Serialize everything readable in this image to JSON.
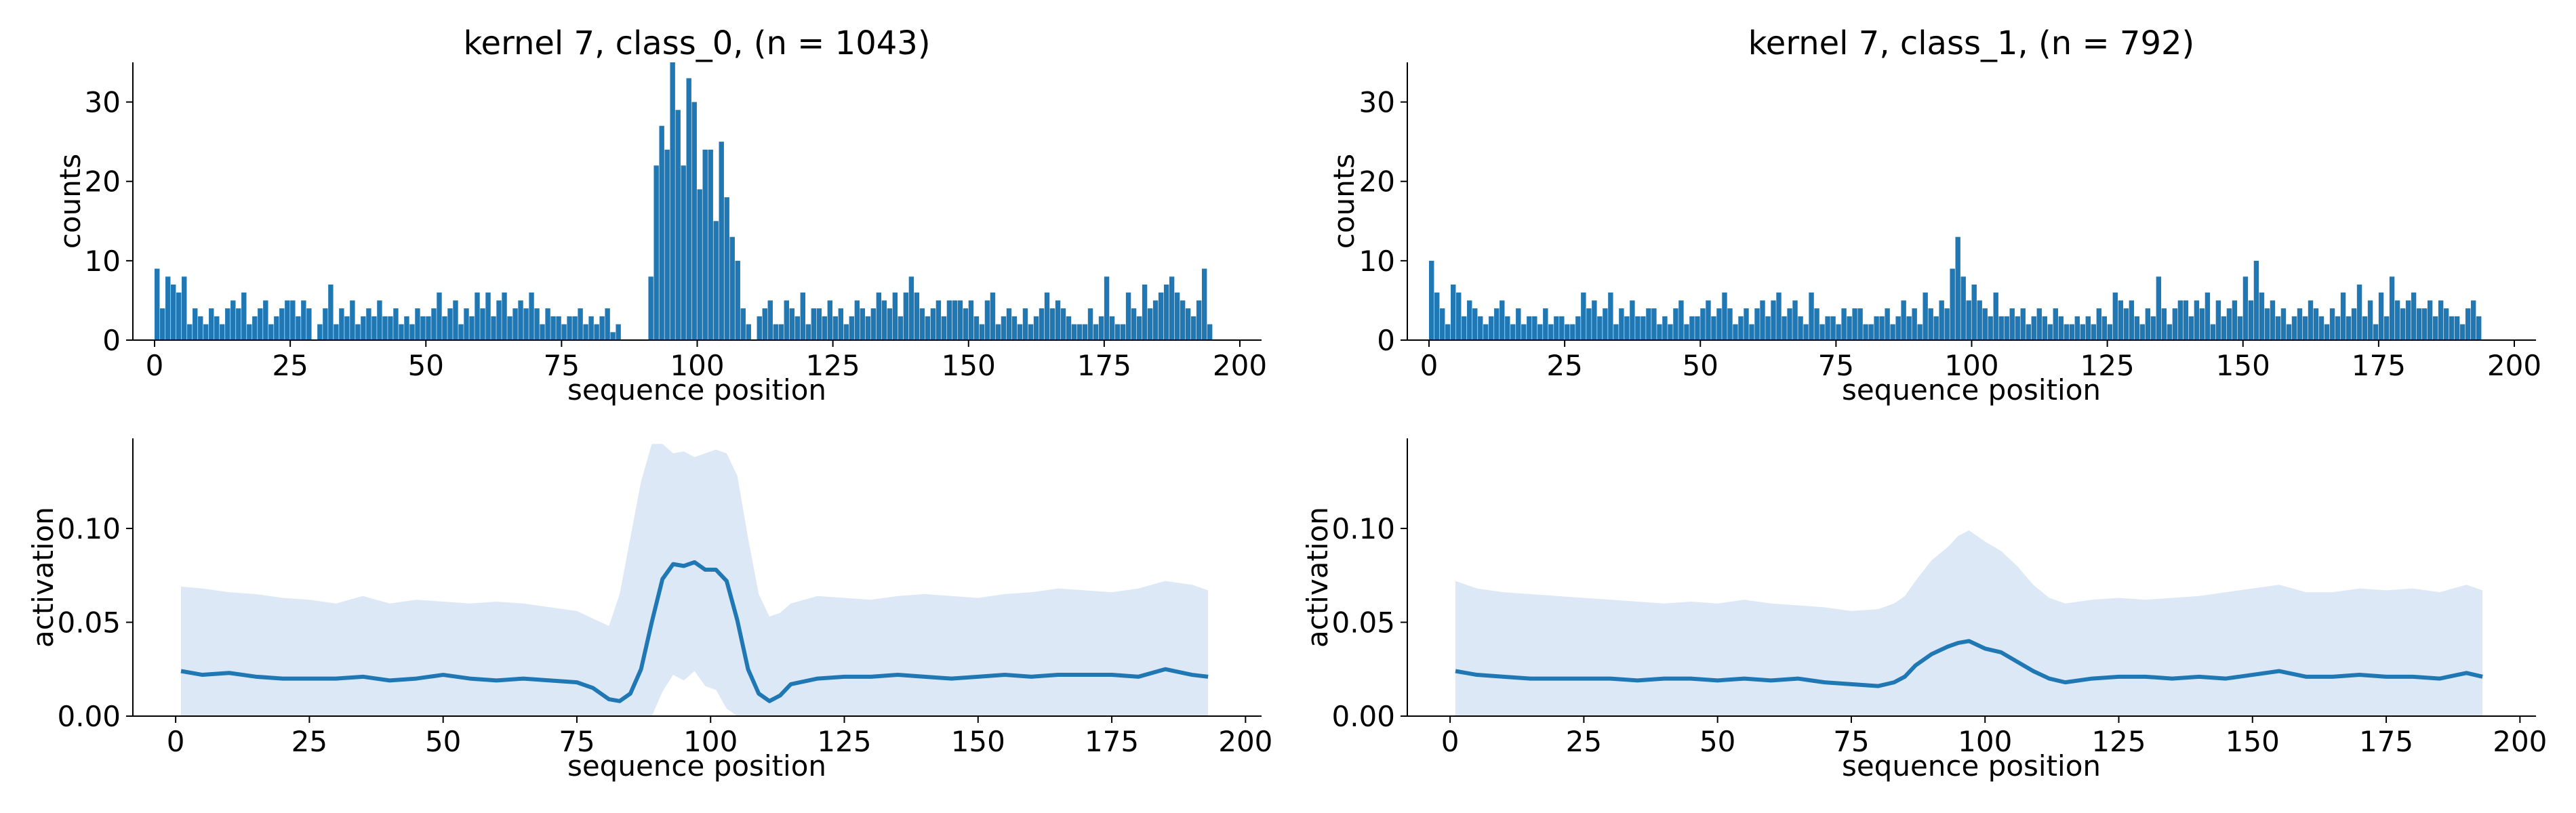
{
  "figure": {
    "colors": {
      "bar": "#1f77b4",
      "line": "#1f77b4",
      "band": "#dce8f5",
      "axis": "#000000"
    }
  },
  "chart_data": [
    {
      "type": "bar",
      "panel": "top-left",
      "title": "kernel 7, class_0, (n = 1043)",
      "xlabel": "sequence position",
      "ylabel": "counts",
      "xlim": [
        -4,
        204
      ],
      "ylim": [
        0,
        35
      ],
      "xticks": [
        0,
        25,
        50,
        75,
        100,
        125,
        150,
        175,
        200
      ],
      "yticks": [
        0,
        10,
        20,
        30
      ],
      "x_start": 0,
      "bin_width": 1,
      "values": [
        9,
        4,
        8,
        7,
        6,
        8,
        2,
        4,
        3,
        2,
        4,
        3,
        2,
        4,
        5,
        4,
        6,
        2,
        3,
        4,
        5,
        2,
        3,
        4,
        5,
        5,
        3,
        5,
        4,
        0,
        2,
        4,
        7,
        2,
        4,
        3,
        5,
        2,
        3,
        4,
        3,
        5,
        3,
        3,
        4,
        2,
        3,
        2,
        4,
        3,
        3,
        4,
        6,
        3,
        4,
        5,
        2,
        4,
        3,
        6,
        4,
        6,
        3,
        5,
        6,
        3,
        4,
        5,
        4,
        6,
        4,
        2,
        4,
        3,
        3,
        2,
        3,
        3,
        4,
        2,
        3,
        2,
        3,
        4,
        1,
        2,
        0,
        0,
        0,
        0,
        0,
        8,
        22,
        27,
        24,
        35,
        29,
        22,
        33,
        30,
        19,
        24,
        24,
        15,
        25,
        18,
        13,
        10,
        4,
        2,
        0,
        3,
        4,
        5,
        2,
        2,
        5,
        4,
        3,
        6,
        2,
        4,
        4,
        3,
        5,
        3,
        4,
        2,
        3,
        5,
        4,
        3,
        4,
        6,
        5,
        4,
        6,
        3,
        6,
        8,
        6,
        4,
        3,
        4,
        5,
        3,
        5,
        5,
        5,
        4,
        5,
        3,
        2,
        5,
        6,
        2,
        3,
        4,
        3,
        2,
        4,
        2,
        3,
        4,
        6,
        4,
        5,
        4,
        3,
        2,
        2,
        2,
        4,
        2,
        3,
        8,
        3,
        2,
        2,
        6,
        4,
        3,
        7,
        4,
        5,
        6,
        7,
        8,
        6,
        5,
        4,
        3,
        5,
        9,
        2
      ]
    },
    {
      "type": "area",
      "panel": "bottom-left",
      "xlabel": "sequence position",
      "ylabel": "activation",
      "xlim": [
        -8,
        203
      ],
      "ylim": [
        0,
        0.148
      ],
      "xticks": [
        0,
        25,
        50,
        75,
        100,
        125,
        150,
        175,
        200
      ],
      "yticks": [
        0.0,
        0.05,
        0.1
      ],
      "ytick_labels": [
        "0.00",
        "0.05",
        "0.10"
      ],
      "x": [
        1,
        5,
        10,
        15,
        20,
        25,
        30,
        35,
        40,
        45,
        50,
        55,
        60,
        65,
        70,
        75,
        78,
        81,
        83,
        85,
        87,
        89,
        91,
        93,
        95,
        97,
        99,
        101,
        103,
        105,
        107,
        109,
        111,
        113,
        115,
        120,
        125,
        130,
        135,
        140,
        145,
        150,
        155,
        160,
        165,
        170,
        175,
        180,
        185,
        190,
        193
      ],
      "mean": [
        0.024,
        0.022,
        0.023,
        0.021,
        0.02,
        0.02,
        0.02,
        0.021,
        0.019,
        0.02,
        0.022,
        0.02,
        0.019,
        0.02,
        0.019,
        0.018,
        0.015,
        0.009,
        0.008,
        0.012,
        0.025,
        0.05,
        0.073,
        0.081,
        0.08,
        0.082,
        0.078,
        0.078,
        0.072,
        0.051,
        0.025,
        0.012,
        0.008,
        0.011,
        0.017,
        0.02,
        0.021,
        0.021,
        0.022,
        0.021,
        0.02,
        0.021,
        0.022,
        0.021,
        0.022,
        0.022,
        0.022,
        0.021,
        0.025,
        0.022,
        0.021
      ],
      "upper": [
        0.069,
        0.068,
        0.066,
        0.065,
        0.063,
        0.062,
        0.06,
        0.064,
        0.06,
        0.062,
        0.061,
        0.06,
        0.061,
        0.06,
        0.058,
        0.056,
        0.052,
        0.048,
        0.065,
        0.095,
        0.125,
        0.145,
        0.145,
        0.14,
        0.141,
        0.138,
        0.14,
        0.142,
        0.14,
        0.128,
        0.095,
        0.065,
        0.053,
        0.055,
        0.06,
        0.064,
        0.063,
        0.062,
        0.064,
        0.065,
        0.064,
        0.063,
        0.065,
        0.066,
        0.068,
        0.067,
        0.066,
        0.068,
        0.072,
        0.07,
        0.067
      ],
      "lower": [
        0.0,
        0.0,
        0.0,
        0.0,
        0.0,
        0.0,
        0.0,
        0.0,
        0.0,
        0.0,
        0.0,
        0.0,
        0.0,
        0.0,
        0.0,
        0.0,
        0.0,
        0.0,
        0.0,
        0.0,
        0.0,
        0.0,
        0.013,
        0.022,
        0.019,
        0.024,
        0.016,
        0.014,
        0.004,
        0.0,
        0.0,
        0.0,
        0.0,
        0.0,
        0.0,
        0.0,
        0.0,
        0.0,
        0.0,
        0.0,
        0.0,
        0.0,
        0.0,
        0.0,
        0.0,
        0.0,
        0.0,
        0.0,
        0.0,
        0.0,
        0.0
      ]
    },
    {
      "type": "bar",
      "panel": "top-right",
      "title": "kernel 7, class_1, (n = 792)",
      "xlabel": "sequence position",
      "ylabel": "counts",
      "xlim": [
        -4,
        204
      ],
      "ylim": [
        0,
        35
      ],
      "xticks": [
        0,
        25,
        50,
        75,
        100,
        125,
        150,
        175,
        200
      ],
      "yticks": [
        0,
        10,
        20,
        30
      ],
      "x_start": 0,
      "bin_width": 1,
      "values": [
        10,
        6,
        4,
        2,
        7,
        6,
        3,
        5,
        4,
        3,
        2,
        3,
        4,
        5,
        3,
        2,
        4,
        2,
        3,
        3,
        2,
        4,
        2,
        3,
        3,
        2,
        2,
        3,
        6,
        4,
        5,
        3,
        4,
        6,
        2,
        4,
        3,
        5,
        3,
        3,
        4,
        4,
        2,
        3,
        2,
        4,
        5,
        2,
        3,
        3,
        4,
        5,
        3,
        4,
        6,
        4,
        2,
        3,
        4,
        2,
        4,
        5,
        3,
        5,
        6,
        3,
        4,
        5,
        3,
        2,
        6,
        4,
        2,
        3,
        3,
        2,
        4,
        3,
        4,
        4,
        2,
        2,
        3,
        3,
        4,
        2,
        3,
        5,
        3,
        4,
        2,
        6,
        4,
        3,
        5,
        4,
        9,
        13,
        8,
        5,
        7,
        5,
        4,
        3,
        6,
        3,
        3,
        4,
        3,
        4,
        2,
        3,
        4,
        3,
        2,
        4,
        3,
        2,
        2,
        3,
        2,
        3,
        2,
        4,
        3,
        2,
        6,
        5,
        4,
        5,
        3,
        2,
        4,
        3,
        8,
        4,
        2,
        4,
        5,
        5,
        3,
        5,
        4,
        6,
        2,
        5,
        3,
        4,
        5,
        3,
        8,
        5,
        10,
        6,
        4,
        5,
        3,
        4,
        2,
        3,
        4,
        3,
        5,
        4,
        3,
        2,
        4,
        3,
        6,
        3,
        4,
        7,
        3,
        5,
        2,
        6,
        3,
        8,
        5,
        4,
        5,
        6,
        4,
        4,
        5,
        3,
        5,
        4,
        3,
        3,
        2,
        4,
        5,
        3
      ]
    },
    {
      "type": "area",
      "panel": "bottom-right",
      "xlabel": "sequence position",
      "ylabel": "activation",
      "xlim": [
        -8,
        203
      ],
      "ylim": [
        0,
        0.148
      ],
      "xticks": [
        0,
        25,
        50,
        75,
        100,
        125,
        150,
        175,
        200
      ],
      "yticks": [
        0.0,
        0.05,
        0.1
      ],
      "ytick_labels": [
        "0.00",
        "0.05",
        "0.10"
      ],
      "x": [
        1,
        5,
        10,
        15,
        20,
        25,
        30,
        35,
        40,
        45,
        50,
        55,
        60,
        65,
        70,
        75,
        80,
        83,
        85,
        87,
        90,
        93,
        95,
        97,
        100,
        103,
        106,
        109,
        112,
        115,
        120,
        125,
        130,
        135,
        140,
        145,
        150,
        155,
        160,
        165,
        170,
        175,
        180,
        185,
        190,
        193
      ],
      "mean": [
        0.024,
        0.022,
        0.021,
        0.02,
        0.02,
        0.02,
        0.02,
        0.019,
        0.02,
        0.02,
        0.019,
        0.02,
        0.019,
        0.02,
        0.018,
        0.017,
        0.016,
        0.018,
        0.021,
        0.027,
        0.033,
        0.037,
        0.039,
        0.04,
        0.036,
        0.034,
        0.029,
        0.024,
        0.02,
        0.018,
        0.02,
        0.021,
        0.021,
        0.02,
        0.021,
        0.02,
        0.022,
        0.024,
        0.021,
        0.021,
        0.022,
        0.021,
        0.021,
        0.02,
        0.023,
        0.021
      ],
      "upper": [
        0.072,
        0.068,
        0.066,
        0.065,
        0.064,
        0.063,
        0.062,
        0.061,
        0.06,
        0.061,
        0.06,
        0.062,
        0.06,
        0.059,
        0.058,
        0.056,
        0.057,
        0.06,
        0.064,
        0.072,
        0.083,
        0.09,
        0.096,
        0.099,
        0.093,
        0.088,
        0.08,
        0.07,
        0.063,
        0.06,
        0.062,
        0.063,
        0.062,
        0.063,
        0.064,
        0.066,
        0.068,
        0.07,
        0.066,
        0.066,
        0.068,
        0.067,
        0.068,
        0.066,
        0.07,
        0.067
      ],
      "lower": [
        0.0,
        0.0,
        0.0,
        0.0,
        0.0,
        0.0,
        0.0,
        0.0,
        0.0,
        0.0,
        0.0,
        0.0,
        0.0,
        0.0,
        0.0,
        0.0,
        0.0,
        0.0,
        0.0,
        0.0,
        0.0,
        0.0,
        0.0,
        0.0,
        0.0,
        0.0,
        0.0,
        0.0,
        0.0,
        0.0,
        0.0,
        0.0,
        0.0,
        0.0,
        0.0,
        0.0,
        0.0,
        0.0,
        0.0,
        0.0,
        0.0,
        0.0,
        0.0,
        0.0,
        0.0,
        0.0
      ]
    }
  ]
}
